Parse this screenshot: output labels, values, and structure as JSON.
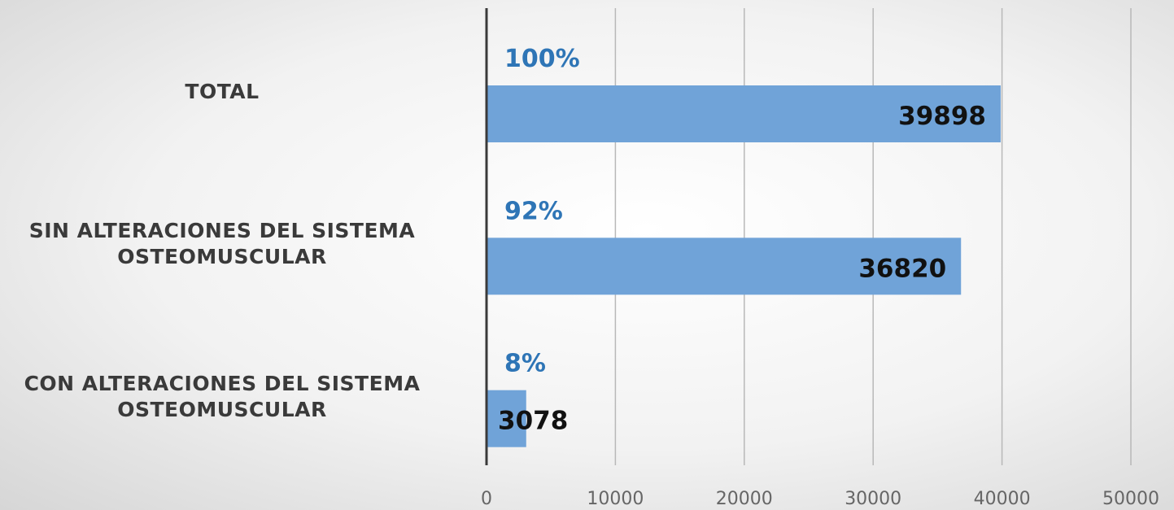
{
  "chart_data": {
    "type": "hbar",
    "categories": [
      "TOTAL",
      "SIN ALTERACIONES  DEL SISTEMA\nOSTEOMUSCULAR",
      "CON ALTERACIONES  DEL SISTEMA\nOSTEOMUSCULAR"
    ],
    "values": [
      39898,
      36820,
      3078
    ],
    "percent_labels": [
      "100%",
      "92%",
      "8%"
    ],
    "color": "#70a3d8",
    "xlim": [
      0,
      50000
    ],
    "xticks": [
      0,
      10000,
      20000,
      30000,
      40000,
      50000
    ],
    "grid": true
  }
}
